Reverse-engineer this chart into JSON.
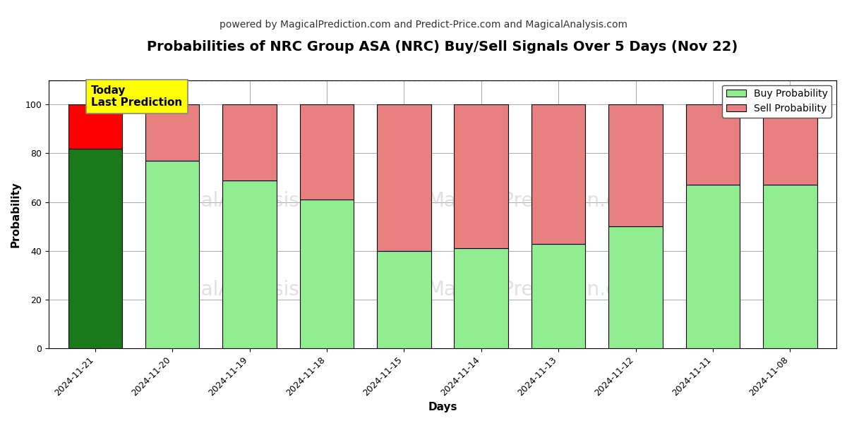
{
  "title": "Probabilities of NRC Group ASA (NRC) Buy/Sell Signals Over 5 Days (Nov 22)",
  "subtitle": "powered by MagicalPrediction.com and Predict-Price.com and MagicalAnalysis.com",
  "xlabel": "Days",
  "ylabel": "Probability",
  "categories": [
    "2024-11-21",
    "2024-11-20",
    "2024-11-19",
    "2024-11-18",
    "2024-11-15",
    "2024-11-14",
    "2024-11-13",
    "2024-11-12",
    "2024-11-11",
    "2024-11-08"
  ],
  "buy_values": [
    82,
    77,
    69,
    61,
    40,
    41,
    43,
    50,
    67,
    67
  ],
  "sell_values": [
    18,
    23,
    31,
    39,
    60,
    59,
    57,
    50,
    33,
    33
  ],
  "today_index": 0,
  "buy_color_today": "#1a7a1a",
  "sell_color_today": "#ff0000",
  "buy_color_normal": "#90ee90",
  "sell_color_normal": "#e88080",
  "bar_edge_color": "#000000",
  "bar_linewidth": 0.8,
  "ylim": [
    0,
    110
  ],
  "yticks": [
    0,
    20,
    40,
    60,
    80,
    100
  ],
  "dashed_line_y": 110,
  "grid_color": "#aaaaaa",
  "background_color": "#ffffff",
  "title_fontsize": 14,
  "subtitle_fontsize": 10,
  "label_fontsize": 11,
  "tick_fontsize": 9,
  "legend_fontsize": 10,
  "annotation_text": "Today\nLast Prediction",
  "annotation_bg": "#ffff00",
  "watermark_color": "#cccccc",
  "watermark_fontsize": 20
}
